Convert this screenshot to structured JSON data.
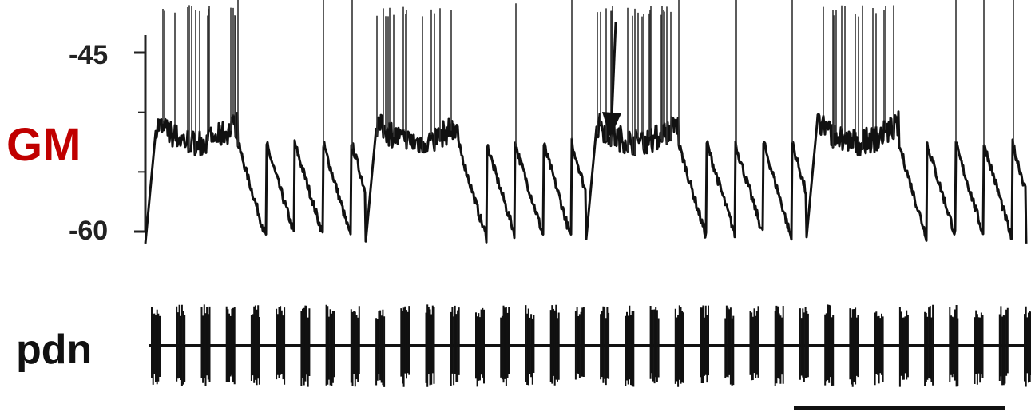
{
  "panel": {
    "cell_label": "GM",
    "nerve_label": "pdn"
  },
  "colors": {
    "cell_label": "#c00000",
    "trace": "#111111",
    "axis": "#222222"
  },
  "chart_data": {
    "type": "line",
    "title": "",
    "y_axis": {
      "ticks": [
        "-45",
        "-60"
      ],
      "tick_values": [
        -45,
        -60
      ],
      "range": [
        -63,
        -40
      ]
    },
    "gm_trace": {
      "name": "GM",
      "n_slow_cycles": 4,
      "burst_plateau_mV": -51,
      "trough_mV": -61,
      "spike_peak_mV": -42,
      "annotation": "arrow"
    },
    "pdn_trace": {
      "name": "pdn",
      "n_bursts": 36
    },
    "scale_bar": {
      "label": ""
    }
  }
}
